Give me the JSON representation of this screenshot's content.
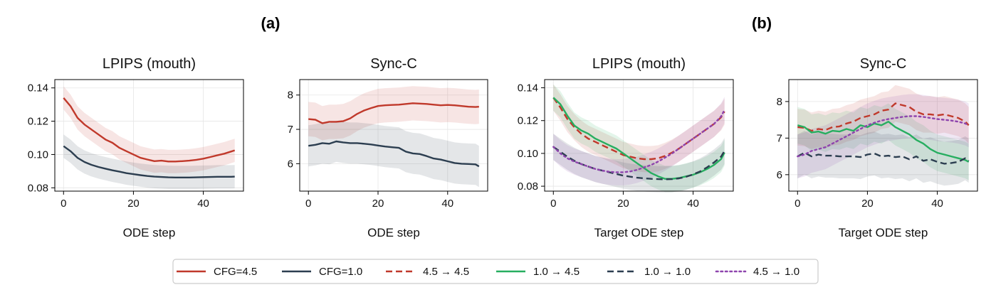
{
  "panel_labels": {
    "a": "(a)",
    "b": "(b)"
  },
  "colors": {
    "cfg45": "#c0392b",
    "cfg10": "#2c3e50",
    "c45to45": "#c0392b",
    "c10to45": "#27ae60",
    "c10to10": "#2c3e50",
    "c45to10": "#8e44ad"
  },
  "legend": [
    {
      "label": "CFG=4.5",
      "color": "#c0392b",
      "dash": "solid"
    },
    {
      "label": "CFG=1.0",
      "color": "#2c3e50",
      "dash": "solid"
    },
    {
      "label": "4.5 → 4.5",
      "color": "#c0392b",
      "dash": "dashed"
    },
    {
      "label": "1.0 → 4.5",
      "color": "#27ae60",
      "dash": "solid"
    },
    {
      "label": "1.0 → 1.0",
      "color": "#2c3e50",
      "dash": "dashed"
    },
    {
      "label": "4.5 → 1.0",
      "color": "#8e44ad",
      "dash": "dotted"
    }
  ],
  "chart_data": [
    {
      "type": "line",
      "title": "LPIPS (mouth)",
      "xlabel": "ODE step",
      "xlim": [
        -2.5,
        51.5
      ],
      "ylim": [
        0.078,
        0.145
      ],
      "xticks": [
        0,
        20,
        40
      ],
      "yticks": [
        0.08,
        0.1,
        0.12,
        0.14
      ],
      "ytick_labels": [
        "0.08",
        "0.10",
        "0.12",
        "0.14"
      ],
      "grid": true,
      "x": [
        0,
        2,
        4,
        6,
        8,
        10,
        12,
        14,
        16,
        18,
        20,
        22,
        24,
        26,
        28,
        30,
        32,
        34,
        36,
        38,
        40,
        42,
        44,
        46,
        48,
        49
      ],
      "series": [
        {
          "name": "CFG=4.5",
          "color": "#c0392b",
          "dash": "solid",
          "values": [
            0.134,
            0.129,
            0.122,
            0.118,
            0.115,
            0.112,
            0.109,
            0.107,
            0.104,
            0.102,
            0.1,
            0.098,
            0.097,
            0.096,
            0.0963,
            0.0958,
            0.0958,
            0.096,
            0.0963,
            0.0968,
            0.0975,
            0.0985,
            0.0995,
            0.1005,
            0.1018,
            0.1025
          ],
          "band": 0.007
        },
        {
          "name": "CFG=1.0",
          "color": "#2c3e50",
          "dash": "solid",
          "values": [
            0.105,
            0.102,
            0.098,
            0.0955,
            0.0938,
            0.0925,
            0.0915,
            0.0905,
            0.0897,
            0.0888,
            0.0882,
            0.0876,
            0.0871,
            0.0867,
            0.0865,
            0.0863,
            0.0862,
            0.0862,
            0.0862,
            0.0863,
            0.0864,
            0.0865,
            0.0866,
            0.0866,
            0.0866,
            0.0867
          ],
          "band": 0.007
        }
      ]
    },
    {
      "type": "line",
      "title": "Sync-C",
      "xlabel": "ODE step",
      "xlim": [
        -2.5,
        51.5
      ],
      "ylim": [
        5.2,
        8.45
      ],
      "xticks": [
        0,
        20,
        40
      ],
      "yticks": [
        6,
        7,
        8
      ],
      "ytick_labels": [
        "6",
        "7",
        "8"
      ],
      "grid": true,
      "x": [
        0,
        2,
        4,
        6,
        8,
        10,
        12,
        14,
        16,
        18,
        20,
        22,
        24,
        26,
        28,
        30,
        32,
        34,
        36,
        38,
        40,
        42,
        44,
        46,
        48,
        49
      ],
      "series": [
        {
          "name": "CFG=4.5",
          "color": "#c0392b",
          "dash": "solid",
          "values": [
            7.3,
            7.28,
            7.18,
            7.22,
            7.22,
            7.24,
            7.32,
            7.45,
            7.55,
            7.62,
            7.68,
            7.7,
            7.71,
            7.72,
            7.74,
            7.76,
            7.75,
            7.74,
            7.72,
            7.7,
            7.71,
            7.7,
            7.68,
            7.66,
            7.65,
            7.66
          ],
          "band": 0.5
        },
        {
          "name": "CFG=1.0",
          "color": "#2c3e50",
          "dash": "solid",
          "values": [
            6.52,
            6.55,
            6.6,
            6.58,
            6.65,
            6.62,
            6.6,
            6.6,
            6.58,
            6.56,
            6.53,
            6.5,
            6.48,
            6.46,
            6.35,
            6.3,
            6.28,
            6.22,
            6.15,
            6.12,
            6.07,
            6.02,
            6.0,
            5.99,
            5.98,
            5.92
          ],
          "band": 0.6
        }
      ]
    },
    {
      "type": "line",
      "title": "LPIPS (mouth)",
      "xlabel": "Target ODE step",
      "xlim": [
        -2.5,
        51.5
      ],
      "ylim": [
        0.077,
        0.145
      ],
      "xticks": [
        0,
        20,
        40
      ],
      "yticks": [
        0.08,
        0.1,
        0.12,
        0.14
      ],
      "ytick_labels": [
        "0.08",
        "0.10",
        "0.12",
        "0.14"
      ],
      "grid": true,
      "x": [
        0,
        2,
        4,
        6,
        8,
        10,
        12,
        14,
        16,
        18,
        20,
        22,
        24,
        26,
        28,
        30,
        32,
        34,
        36,
        38,
        40,
        42,
        44,
        46,
        48,
        49
      ],
      "series": [
        {
          "name": "4.5 → 4.5",
          "color": "#c0392b",
          "dash": "dashed",
          "values": [
            0.134,
            0.128,
            0.121,
            0.116,
            0.112,
            0.109,
            0.107,
            0.105,
            0.103,
            0.101,
            0.099,
            0.098,
            0.097,
            0.0965,
            0.0965,
            0.097,
            0.0985,
            0.1005,
            0.103,
            0.106,
            0.109,
            0.112,
            0.115,
            0.118,
            0.122,
            0.1255
          ],
          "band": 0.008
        },
        {
          "name": "1.0 → 4.5",
          "color": "#27ae60",
          "dash": "solid",
          "values": [
            0.134,
            0.13,
            0.123,
            0.117,
            0.114,
            0.112,
            0.109,
            0.107,
            0.105,
            0.103,
            0.1,
            0.097,
            0.094,
            0.091,
            0.088,
            0.086,
            0.0845,
            0.0845,
            0.085,
            0.086,
            0.087,
            0.0885,
            0.0905,
            0.093,
            0.0965,
            0.1005
          ],
          "band": 0.008
        },
        {
          "name": "1.0 → 1.0",
          "color": "#2c3e50",
          "dash": "dashed",
          "values": [
            0.104,
            0.101,
            0.098,
            0.0955,
            0.0935,
            0.092,
            0.0905,
            0.0895,
            0.0885,
            0.0875,
            0.0865,
            0.0858,
            0.0852,
            0.0848,
            0.0845,
            0.0843,
            0.0842,
            0.0843,
            0.0848,
            0.0858,
            0.0872,
            0.089,
            0.0915,
            0.0945,
            0.098,
            0.1015
          ],
          "band": 0.008
        },
        {
          "name": "4.5 → 1.0",
          "color": "#8e44ad",
          "dash": "dotted",
          "values": [
            0.104,
            0.1,
            0.097,
            0.095,
            0.0935,
            0.092,
            0.0905,
            0.0895,
            0.0888,
            0.0885,
            0.0885,
            0.089,
            0.09,
            0.0915,
            0.093,
            0.095,
            0.0975,
            0.1,
            0.103,
            0.106,
            0.109,
            0.112,
            0.115,
            0.118,
            0.1225,
            0.1265
          ],
          "band": 0.008
        }
      ]
    },
    {
      "type": "line",
      "title": "Sync-C",
      "xlabel": "Target ODE step",
      "xlim": [
        -2.5,
        51.5
      ],
      "ylim": [
        5.55,
        8.6
      ],
      "xticks": [
        0,
        20,
        40
      ],
      "yticks": [
        6,
        7,
        8
      ],
      "ytick_labels": [
        "6",
        "7",
        "8"
      ],
      "grid": true,
      "x": [
        0,
        2,
        4,
        6,
        8,
        10,
        12,
        14,
        16,
        18,
        20,
        22,
        24,
        26,
        28,
        30,
        32,
        34,
        36,
        38,
        40,
        42,
        44,
        46,
        48,
        49
      ],
      "series": [
        {
          "name": "4.5 → 4.5",
          "color": "#c0392b",
          "dash": "dashed",
          "values": [
            7.3,
            7.28,
            7.2,
            7.25,
            7.22,
            7.3,
            7.32,
            7.4,
            7.45,
            7.55,
            7.6,
            7.65,
            7.75,
            7.78,
            7.95,
            7.9,
            7.85,
            7.72,
            7.65,
            7.65,
            7.62,
            7.65,
            7.6,
            7.55,
            7.45,
            7.35
          ],
          "band": 0.5
        },
        {
          "name": "1.0 → 4.5",
          "color": "#27ae60",
          "dash": "solid",
          "values": [
            7.35,
            7.3,
            7.15,
            7.18,
            7.12,
            7.2,
            7.18,
            7.25,
            7.2,
            7.35,
            7.3,
            7.4,
            7.35,
            7.45,
            7.3,
            7.2,
            7.1,
            6.95,
            6.85,
            6.7,
            6.6,
            6.55,
            6.5,
            6.45,
            6.4,
            6.35
          ],
          "band": 0.5
        },
        {
          "name": "1.0 → 1.0",
          "color": "#2c3e50",
          "dash": "dashed",
          "values": [
            6.5,
            6.6,
            6.5,
            6.55,
            6.52,
            6.52,
            6.5,
            6.5,
            6.5,
            6.48,
            6.55,
            6.58,
            6.5,
            6.52,
            6.48,
            6.5,
            6.42,
            6.5,
            6.38,
            6.42,
            6.35,
            6.3,
            6.32,
            6.35,
            6.45,
            6.38
          ],
          "band": 0.6
        },
        {
          "name": "4.5 → 1.0",
          "color": "#8e44ad",
          "dash": "dotted",
          "values": [
            6.5,
            6.55,
            6.65,
            6.7,
            6.75,
            6.85,
            6.95,
            7.05,
            7.15,
            7.25,
            7.35,
            7.42,
            7.48,
            7.52,
            7.55,
            7.58,
            7.6,
            7.6,
            7.58,
            7.55,
            7.52,
            7.5,
            7.48,
            7.45,
            7.4,
            7.35
          ],
          "band": 0.6
        }
      ]
    }
  ]
}
